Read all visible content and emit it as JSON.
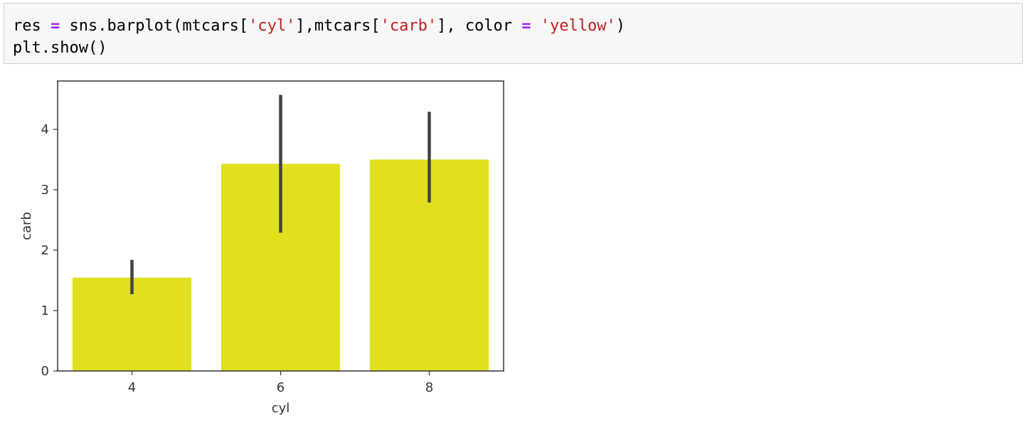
{
  "code_cell": {
    "line1": {
      "t1": "res ",
      "t2": "=",
      "t3": " sns.barplot(mtcars[",
      "t4": "'cyl'",
      "t5": "],mtcars[",
      "t6": "'carb'",
      "t7": "], color ",
      "t8": "=",
      "t9": " ",
      "t10": "'yellow'",
      "t11": ")"
    },
    "line2": "plt.show()"
  },
  "chart_data": {
    "type": "bar",
    "categories": [
      "4",
      "6",
      "8"
    ],
    "values": [
      1.545,
      3.43,
      3.5
    ],
    "error_low": [
      1.27,
      2.29,
      2.79
    ],
    "error_high": [
      1.84,
      4.57,
      4.29
    ],
    "xlabel": "cyl",
    "ylabel": "carb",
    "ylim": [
      0,
      4.8
    ],
    "yticks": [
      0,
      1,
      2,
      3,
      4
    ],
    "grid": false,
    "bar_color": "#e0e01e",
    "errbar_color": "#424242"
  }
}
